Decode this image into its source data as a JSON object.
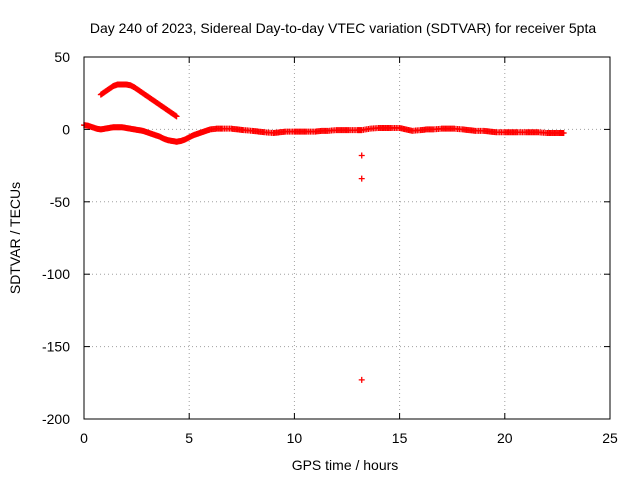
{
  "chart_data": {
    "type": "scatter",
    "title": "Day 240 of 2023, Sidereal Day-to-day VTEC variation (SDTVAR) for receiver 5pta",
    "xlabel": "GPS time / hours",
    "ylabel": "SDTVAR / TECUs",
    "xlim": [
      0,
      25
    ],
    "ylim": [
      -200,
      50
    ],
    "xticks": [
      0,
      5,
      10,
      15,
      20,
      25
    ],
    "yticks": [
      -200,
      -150,
      -100,
      -50,
      0,
      50
    ],
    "xtick_labels": [
      "0",
      "5",
      "10",
      "15",
      "20",
      "25"
    ],
    "ytick_labels": [
      "-200",
      "-150",
      "-100",
      "-50",
      "0",
      "50"
    ],
    "grid": true,
    "marker": "+",
    "series": [
      {
        "name": "SDTVAR",
        "color": "#ff0000",
        "points": [
          [
            0.0,
            3
          ],
          [
            0.2,
            2.5
          ],
          [
            0.4,
            1.5
          ],
          [
            0.6,
            0.5
          ],
          [
            0.8,
            0
          ],
          [
            1.0,
            0.5
          ],
          [
            1.2,
            1
          ],
          [
            1.4,
            1.5
          ],
          [
            1.6,
            1.5
          ],
          [
            1.8,
            1.5
          ],
          [
            2.0,
            1
          ],
          [
            2.2,
            0.5
          ],
          [
            2.4,
            0
          ],
          [
            2.6,
            -0.5
          ],
          [
            2.8,
            -1
          ],
          [
            3.0,
            -2
          ],
          [
            3.2,
            -3
          ],
          [
            3.4,
            -4
          ],
          [
            3.6,
            -5
          ],
          [
            3.8,
            -6.5
          ],
          [
            4.0,
            -7.5
          ],
          [
            4.2,
            -8
          ],
          [
            4.4,
            -8.5
          ],
          [
            4.6,
            -8
          ],
          [
            4.8,
            -7
          ],
          [
            5.0,
            -5.5
          ],
          [
            5.2,
            -4
          ],
          [
            5.4,
            -3
          ],
          [
            5.6,
            -2
          ],
          [
            5.8,
            -1
          ],
          [
            6.0,
            0
          ],
          [
            6.3,
            0.5
          ],
          [
            6.6,
            0.5
          ],
          [
            7.0,
            0.5
          ],
          [
            7.3,
            0
          ],
          [
            7.6,
            -0.5
          ],
          [
            8.0,
            -1
          ],
          [
            8.3,
            -1.5
          ],
          [
            8.6,
            -2
          ],
          [
            9.0,
            -2.5
          ],
          [
            9.3,
            -2
          ],
          [
            9.6,
            -1.5
          ],
          [
            10.0,
            -1.5
          ],
          [
            10.3,
            -1.5
          ],
          [
            10.6,
            -1.5
          ],
          [
            11.0,
            -1.5
          ],
          [
            11.3,
            -1
          ],
          [
            11.6,
            -1
          ],
          [
            12.0,
            -0.5
          ],
          [
            12.3,
            -0.5
          ],
          [
            12.6,
            -0.5
          ],
          [
            13.0,
            -0.5
          ],
          [
            13.2,
            -0.5
          ],
          [
            13.6,
            0.5
          ],
          [
            14.0,
            1
          ],
          [
            14.3,
            1
          ],
          [
            14.6,
            1
          ],
          [
            15.0,
            1
          ],
          [
            15.3,
            0
          ],
          [
            15.6,
            -1
          ],
          [
            16.0,
            -0.5
          ],
          [
            16.3,
            0
          ],
          [
            16.6,
            0
          ],
          [
            17.0,
            0.5
          ],
          [
            17.3,
            0.5
          ],
          [
            17.6,
            0.5
          ],
          [
            18.0,
            0
          ],
          [
            18.3,
            -0.5
          ],
          [
            18.6,
            -1
          ],
          [
            19.0,
            -1
          ],
          [
            19.3,
            -1.5
          ],
          [
            19.6,
            -2
          ],
          [
            20.0,
            -2
          ],
          [
            20.3,
            -2
          ],
          [
            20.6,
            -2
          ],
          [
            21.0,
            -2
          ],
          [
            21.3,
            -2
          ],
          [
            21.6,
            -2
          ],
          [
            22.0,
            -2.5
          ],
          [
            22.3,
            -2.5
          ],
          [
            22.6,
            -2.5
          ],
          [
            22.8,
            -2.5
          ],
          [
            0.8,
            24
          ],
          [
            1.0,
            26
          ],
          [
            1.2,
            28
          ],
          [
            1.4,
            30
          ],
          [
            1.6,
            31
          ],
          [
            1.8,
            31
          ],
          [
            2.0,
            31
          ],
          [
            2.2,
            30.5
          ],
          [
            2.4,
            29
          ],
          [
            2.6,
            27
          ],
          [
            2.8,
            25
          ],
          [
            3.0,
            23
          ],
          [
            3.2,
            21
          ],
          [
            3.4,
            19
          ],
          [
            3.6,
            17
          ],
          [
            3.8,
            15
          ],
          [
            4.0,
            13
          ],
          [
            4.2,
            11
          ],
          [
            4.4,
            9
          ],
          [
            13.2,
            -18
          ],
          [
            13.2,
            -34
          ],
          [
            13.2,
            -173
          ]
        ]
      }
    ]
  }
}
